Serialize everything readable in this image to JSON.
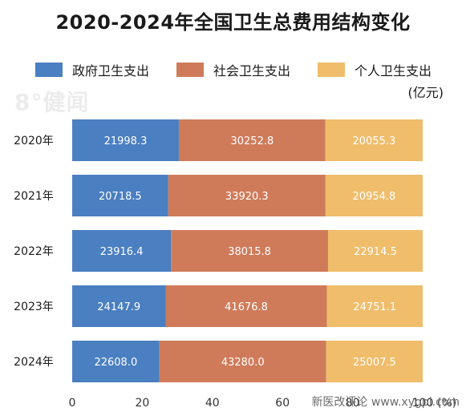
{
  "chart_data": {
    "type": "bar",
    "orientation": "horizontal",
    "stacked": "percent",
    "title": "2020-2024年全国卫生总费用结构变化",
    "unit_label": "(亿元)",
    "x_unit_label": "(%)",
    "categories": [
      "2020年",
      "2021年",
      "2022年",
      "2023年",
      "2024年"
    ],
    "series": [
      {
        "name": "政府卫生支出",
        "color": "#4a7fc1",
        "values": [
          21998.3,
          20718.5,
          23916.4,
          24147.9,
          22608.0
        ]
      },
      {
        "name": "社会卫生支出",
        "color": "#cf7b5a",
        "values": [
          30252.8,
          33920.3,
          38015.8,
          41676.8,
          43280.0
        ]
      },
      {
        "name": "个人卫生支出",
        "color": "#f0bd6b",
        "values": [
          20055.3,
          20954.8,
          22914.5,
          24751.1,
          25007.5
        ]
      }
    ],
    "xlim": [
      0,
      100
    ],
    "xticks": [
      0,
      20,
      40,
      60,
      80,
      100
    ],
    "grid": false,
    "legend": "top"
  },
  "watermark": "8°健闻",
  "footer": "新医改评论 www.xygpl.com"
}
